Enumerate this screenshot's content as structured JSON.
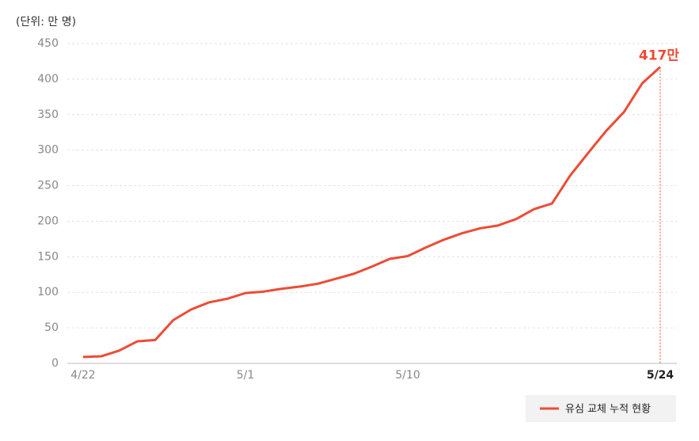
{
  "chart_data": {
    "type": "line",
    "unit_label": "(단위: 만 명)",
    "categories": [
      "4/22",
      null,
      null,
      null,
      null,
      null,
      null,
      null,
      null,
      "5/1",
      null,
      null,
      null,
      null,
      null,
      null,
      null,
      null,
      "5/10",
      null,
      null,
      null,
      null,
      null,
      null,
      null,
      null,
      null,
      null,
      null,
      null,
      null,
      "5/24"
    ],
    "series": [
      {
        "name": "유심 교체 누적 현황",
        "color": "#ee4b35",
        "values": [
          9,
          10,
          18,
          31,
          33,
          61,
          76,
          86,
          91,
          99,
          101,
          105,
          108,
          112,
          119,
          126,
          136,
          147,
          151,
          163,
          174,
          183,
          190,
          194,
          203,
          217,
          225,
          264,
          296,
          327,
          354,
          394,
          417
        ]
      }
    ],
    "annotation": "417만",
    "ylim": [
      0,
      450
    ],
    "yticks": [
      0,
      50,
      100,
      150,
      200,
      250,
      300,
      350,
      400,
      450
    ],
    "grid": true,
    "legend": "bottom-right"
  }
}
